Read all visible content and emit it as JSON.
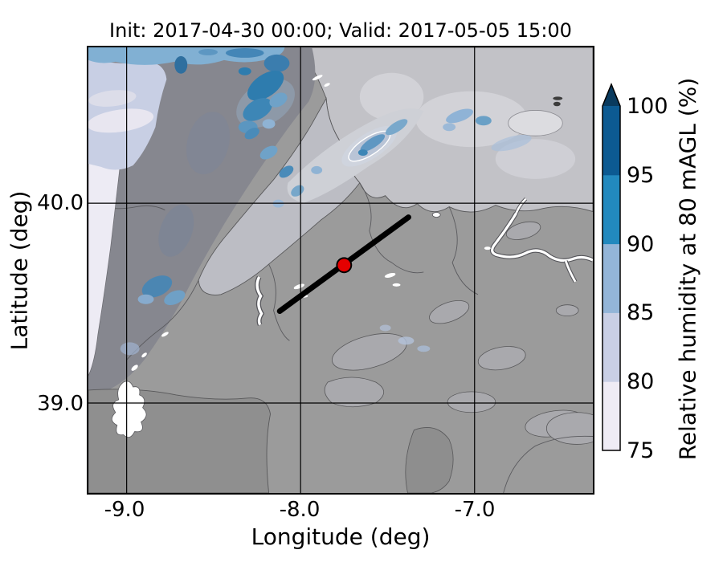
{
  "figure": {
    "title": "Init: 2017-04-30 00:00; Valid: 2017-05-05 15:00",
    "xlabel": "Longitude (deg)",
    "ylabel": "Latitude (deg)"
  },
  "axes": {
    "x_tick_labels": [
      "-9.0",
      "-8.0",
      "-7.0"
    ],
    "y_tick_labels": [
      "40.0",
      "39.0"
    ]
  },
  "colorbar": {
    "label": "Relative humidity at 80 mAGL (%)",
    "tick_labels": [
      "100",
      "95",
      "90",
      "85",
      "80",
      "75"
    ],
    "extend": "max",
    "bins": [
      {
        "range": "75-80",
        "color": "#efecf5"
      },
      {
        "range": "80-85",
        "color": "#c9cfe5"
      },
      {
        "range": "85-90",
        "color": "#93b5d8"
      },
      {
        "range": "90-95",
        "color": "#2289be"
      },
      {
        "range": "95-100",
        "color": "#0c5a92"
      }
    ],
    "over_color": "#093a5e"
  },
  "chart_data": {
    "type": "heatmap",
    "title": "Init: 2017-04-30 00:00; Valid: 2017-05-05 15:00",
    "xlabel": "Longitude (deg)",
    "ylabel": "Latitude (deg)",
    "xlim": [
      -9.22,
      -6.32
    ],
    "ylim": [
      38.55,
      40.78
    ],
    "x_ticks": [
      -9.0,
      -8.0,
      -7.0
    ],
    "y_ticks": [
      40.0,
      39.0
    ],
    "grid": true,
    "variable": "Relative humidity at 80 mAGL (%)",
    "value_range": [
      75,
      100
    ],
    "bin_edges": [
      75,
      80,
      85,
      90,
      95,
      100
    ],
    "legend_position": "right-colorbar",
    "annotations": [
      {
        "type": "line",
        "name": "cross-section",
        "from_lonlat": [
          -8.12,
          39.46
        ],
        "to_lonlat": [
          -7.38,
          39.93
        ],
        "color": "#000000",
        "width": 7
      },
      {
        "type": "marker",
        "name": "site",
        "lonlat": [
          -7.75,
          39.69
        ],
        "color": "#e50000",
        "edge_color": "#000000"
      }
    ],
    "shaded_features": [
      {
        "name": "atlantic-coast-ocean",
        "humidity_pct": "75-90",
        "where": "along west (left) edge, tapering southward"
      },
      {
        "name": "northwest-mountain-ridge",
        "humidity_pct": "85-100 patches",
        "where": "NE-SW ridge across the north and northwest"
      },
      {
        "name": "northeast-plateau",
        "humidity_pct": "75-85 light shading",
        "where": "upper right quadrant"
      },
      {
        "name": "southern-interior",
        "humidity_pct": "below 75 (unshaded gray terrain)",
        "where": "center and south"
      }
    ]
  }
}
